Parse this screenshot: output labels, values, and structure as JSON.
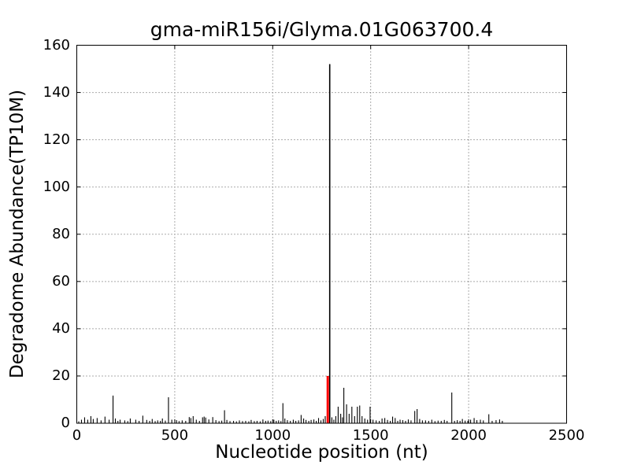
{
  "figure": {
    "background": "#ffffff",
    "text_color": "#000000"
  },
  "chart_data": {
    "type": "stem",
    "title": "gma-miR156i/Glyma.01G063700.4",
    "xlabel": "Nucleotide position (nt)",
    "ylabel": "Degradome Abundance(TP10M)",
    "xlim": [
      0,
      2500
    ],
    "ylim": [
      0,
      160
    ],
    "xticks": [
      0,
      500,
      1000,
      1500,
      2000,
      2500
    ],
    "yticks": [
      0,
      20,
      40,
      60,
      80,
      100,
      120,
      140,
      160
    ],
    "grid": {
      "show": true,
      "style": "dotted",
      "color": "#444444"
    },
    "legend": "none",
    "spike_color": "#000000",
    "highlight": {
      "x": 1281,
      "y": 20,
      "color": "#ff0000"
    },
    "peak": {
      "x": 1291,
      "y": 152
    },
    "points": [
      [
        10,
        0.8
      ],
      [
        24,
        1.5
      ],
      [
        40,
        2.5
      ],
      [
        56,
        1.5
      ],
      [
        72,
        3
      ],
      [
        84,
        1.8
      ],
      [
        104,
        2.2
      ],
      [
        124,
        1.2
      ],
      [
        144,
        2.8
      ],
      [
        165,
        1.5
      ],
      [
        185,
        11.7
      ],
      [
        197,
        2
      ],
      [
        210,
        1
      ],
      [
        221,
        1.5
      ],
      [
        245,
        1.2
      ],
      [
        260,
        0.9
      ],
      [
        273,
        2
      ],
      [
        301,
        1.5
      ],
      [
        318,
        1
      ],
      [
        337,
        3.2
      ],
      [
        357,
        1.4
      ],
      [
        372,
        1
      ],
      [
        385,
        1.8
      ],
      [
        400,
        0.9
      ],
      [
        413,
        1.2
      ],
      [
        427,
        1
      ],
      [
        437,
        2
      ],
      [
        452,
        1.1
      ],
      [
        468,
        11
      ],
      [
        485,
        1.5
      ],
      [
        509,
        1.3
      ],
      [
        522,
        0.9
      ],
      [
        538,
        1.2
      ],
      [
        556,
        1
      ],
      [
        574,
        2.6
      ],
      [
        582,
        2.2
      ],
      [
        594,
        3
      ],
      [
        610,
        1.5
      ],
      [
        626,
        1
      ],
      [
        642,
        2.5
      ],
      [
        650,
        2.8
      ],
      [
        658,
        2.4
      ],
      [
        674,
        1.6
      ],
      [
        694,
        2.6
      ],
      [
        710,
        1.3
      ],
      [
        726,
        0.9
      ],
      [
        740,
        1.1
      ],
      [
        754,
        5.5
      ],
      [
        766,
        1.4
      ],
      [
        782,
        0.9
      ],
      [
        800,
        1
      ],
      [
        815,
        0.8
      ],
      [
        830,
        1.2
      ],
      [
        846,
        0.9
      ],
      [
        862,
        1
      ],
      [
        878,
        0.8
      ],
      [
        890,
        1.4
      ],
      [
        906,
        0.9
      ],
      [
        920,
        1
      ],
      [
        936,
        0.8
      ],
      [
        950,
        1.6
      ],
      [
        964,
        1
      ],
      [
        976,
        1.1
      ],
      [
        990,
        0.9
      ],
      [
        1006,
        1.5
      ],
      [
        1018,
        1
      ],
      [
        1030,
        1.2
      ],
      [
        1042,
        0.9
      ],
      [
        1052,
        8.5
      ],
      [
        1062,
        2
      ],
      [
        1075,
        1.3
      ],
      [
        1090,
        1
      ],
      [
        1105,
        1.5
      ],
      [
        1118,
        1
      ],
      [
        1132,
        1.2
      ],
      [
        1145,
        3.5
      ],
      [
        1158,
        2
      ],
      [
        1170,
        1.4
      ],
      [
        1184,
        1
      ],
      [
        1196,
        1.4
      ],
      [
        1210,
        1.6
      ],
      [
        1222,
        1
      ],
      [
        1234,
        2.2
      ],
      [
        1246,
        1.2
      ],
      [
        1258,
        1.8
      ],
      [
        1268,
        3
      ],
      [
        1291,
        152
      ],
      [
        1302,
        2.5
      ],
      [
        1312,
        1.5
      ],
      [
        1322,
        3
      ],
      [
        1334,
        7
      ],
      [
        1347,
        4
      ],
      [
        1356,
        2.5
      ],
      [
        1363,
        15
      ],
      [
        1377,
        8
      ],
      [
        1390,
        4
      ],
      [
        1404,
        7
      ],
      [
        1418,
        3
      ],
      [
        1432,
        7
      ],
      [
        1444,
        7.5
      ],
      [
        1456,
        3
      ],
      [
        1470,
        2
      ],
      [
        1484,
        1.5
      ],
      [
        1497,
        7
      ],
      [
        1512,
        1.5
      ],
      [
        1528,
        1.2
      ],
      [
        1544,
        1
      ],
      [
        1558,
        2
      ],
      [
        1572,
        2.2
      ],
      [
        1586,
        1.4
      ],
      [
        1600,
        1
      ],
      [
        1612,
        2.8
      ],
      [
        1625,
        2.2
      ],
      [
        1638,
        1
      ],
      [
        1650,
        1.5
      ],
      [
        1664,
        1.3
      ],
      [
        1678,
        1
      ],
      [
        1692,
        1.6
      ],
      [
        1706,
        1.2
      ],
      [
        1725,
        5.2
      ],
      [
        1737,
        6
      ],
      [
        1750,
        1.8
      ],
      [
        1764,
        1.2
      ],
      [
        1780,
        1.2
      ],
      [
        1796,
        1
      ],
      [
        1812,
        1.5
      ],
      [
        1828,
        0.9
      ],
      [
        1844,
        1.1
      ],
      [
        1860,
        1
      ],
      [
        1876,
        1.4
      ],
      [
        1890,
        1
      ],
      [
        1914,
        13
      ],
      [
        1928,
        1
      ],
      [
        1942,
        1.3
      ],
      [
        1956,
        1
      ],
      [
        1968,
        1.8
      ],
      [
        1982,
        1.1
      ],
      [
        1996,
        1
      ],
      [
        2010,
        1.5
      ],
      [
        2028,
        2.2
      ],
      [
        2042,
        1.3
      ],
      [
        2060,
        1.5
      ],
      [
        2075,
        1.2
      ],
      [
        2103,
        3.8
      ],
      [
        2120,
        1
      ],
      [
        2140,
        1.3
      ],
      [
        2158,
        1.6
      ],
      [
        2172,
        1
      ]
    ]
  }
}
